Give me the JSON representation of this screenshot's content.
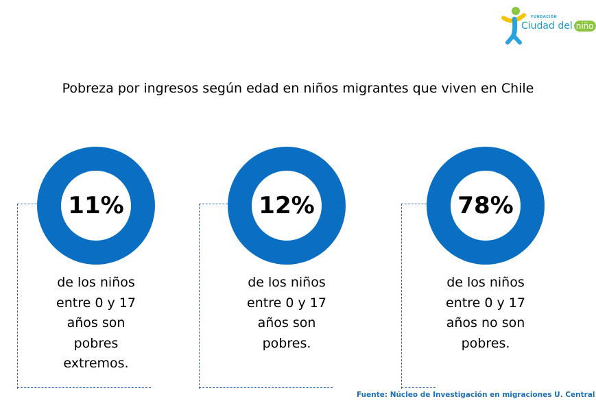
{
  "logo": {
    "foundation_label": "FUNDACIÓN",
    "name_part1": "Ciudad del",
    "name_part2": "niño",
    "colors": {
      "blue": "#1e9ad6",
      "green": "#8cc63e",
      "yellow": "#f5c400"
    }
  },
  "title": "Pobreza por ingresos según edad en niños migrantes que viven en Chile",
  "chart_data": {
    "type": "pie",
    "title": "Pobreza por ingresos según edad en niños migrantes que viven en Chile",
    "ring_color": "#0a6fc2",
    "items": [
      {
        "value": 11,
        "label": "11%",
        "description_lines": [
          "de los niños",
          "entre 0 y 17",
          "años son",
          "pobres",
          "extremos."
        ]
      },
      {
        "value": 12,
        "label": "12%",
        "description_lines": [
          "de los niños",
          "entre 0 y 17",
          "años son",
          "pobres."
        ]
      },
      {
        "value": 78,
        "label": "78%",
        "description_lines": [
          "de los niños",
          "entre 0 y 17",
          "años no son",
          "pobres."
        ]
      }
    ]
  },
  "source": "Fuente: Núcleo de Investigación  en migraciones  U. Central"
}
